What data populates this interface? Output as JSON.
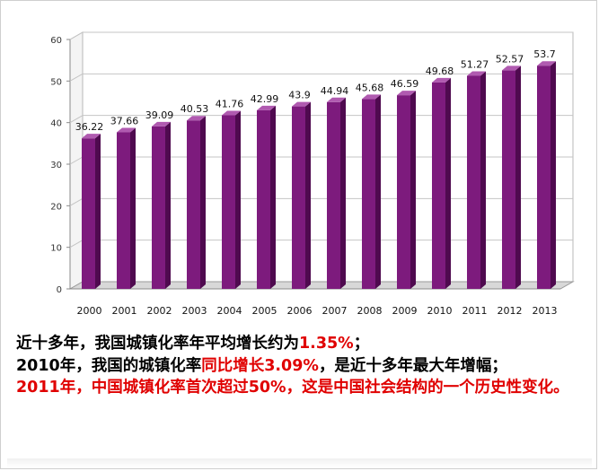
{
  "chart_data": {
    "type": "bar",
    "categories": [
      "2000",
      "2001",
      "2002",
      "2003",
      "2004",
      "2005",
      "2006",
      "2007",
      "2008",
      "2009",
      "2010",
      "2011",
      "2012",
      "2013"
    ],
    "values": [
      36.22,
      37.66,
      39.09,
      40.53,
      41.76,
      42.99,
      43.9,
      44.94,
      45.68,
      46.59,
      49.68,
      51.27,
      52.57,
      53.7
    ],
    "value_labels": [
      "36.22",
      "37.66",
      "39.09",
      "40.53",
      "41.76",
      "42.99",
      "43.9",
      "44.94",
      "45.68",
      "46.59",
      "49.68",
      "51.27",
      "52.57",
      "53.7"
    ],
    "y_ticks": [
      "0",
      "10",
      "20",
      "30",
      "40",
      "50",
      "60"
    ],
    "ylim": [
      0,
      60
    ],
    "grid": true,
    "bar_color": "#7d1b7d",
    "style": "3d"
  },
  "notes": {
    "line1_a": "近十多年，我国城镇化率年平均增长约为",
    "line1_b": "1.35%",
    "line1_c": "；",
    "line2_a": "2010年，我国的城镇化率",
    "line2_b": "同比增长3.09%",
    "line2_c": "，是近十多年最大年增幅；",
    "line3": "2011年，中国城镇化率首次超过50%，这是中国社会结构的一个历史性变化。"
  }
}
